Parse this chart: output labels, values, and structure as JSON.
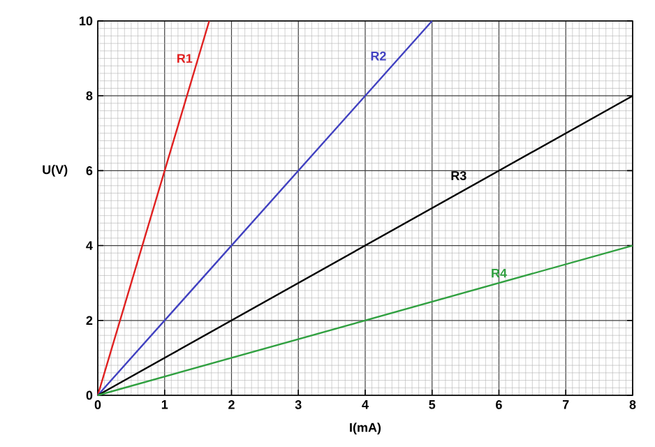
{
  "chart_data": {
    "type": "line",
    "xlabel": "I(mA)",
    "ylabel": "U(V)",
    "xlim": [
      0,
      8
    ],
    "ylim": [
      0,
      10
    ],
    "xticks": [
      0,
      1,
      2,
      3,
      4,
      5,
      6,
      7,
      8
    ],
    "yticks": [
      0,
      2,
      4,
      6,
      8,
      10
    ],
    "grid": true,
    "marker": "none",
    "line_style": "solid",
    "series": [
      {
        "name": "R1",
        "color": "#e02020",
        "x": [
          0,
          1.667
        ],
        "values": [
          0,
          10
        ]
      },
      {
        "name": "R2",
        "color": "#4040c0",
        "x": [
          0,
          5
        ],
        "values": [
          0,
          10
        ]
      },
      {
        "name": "R3",
        "color": "#000000",
        "x": [
          0,
          8
        ],
        "values": [
          0,
          8
        ]
      },
      {
        "name": "R4",
        "color": "#30a040",
        "x": [
          0,
          8
        ],
        "values": [
          0,
          4
        ]
      }
    ]
  }
}
